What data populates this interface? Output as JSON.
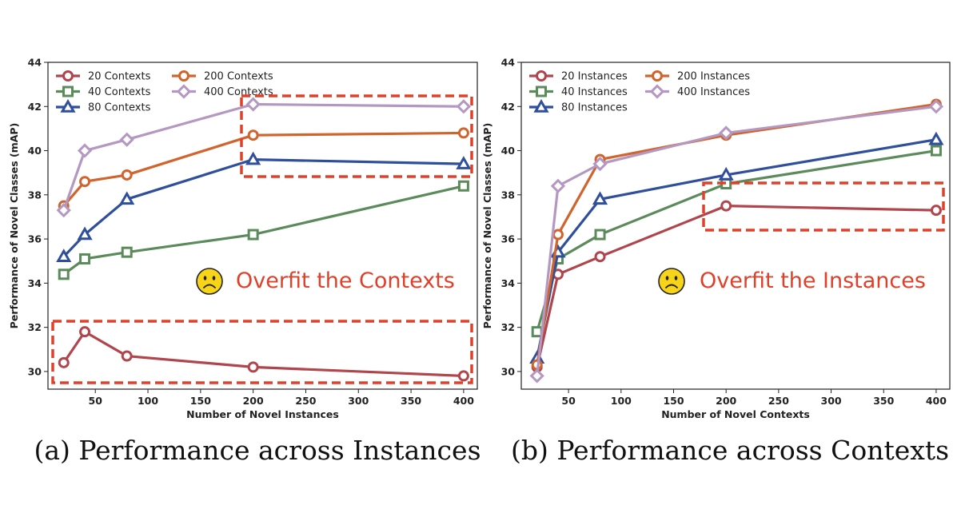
{
  "chart_data": [
    {
      "type": "line",
      "caption": "(a) Performance across Instances",
      "xlabel": "Number of Novel Instances",
      "ylabel": "Performance of Novel Classes (mAP)",
      "xlim": [
        5,
        413
      ],
      "ylim": [
        29.2,
        44
      ],
      "xticks": [
        50,
        100,
        150,
        200,
        250,
        300,
        350,
        400
      ],
      "yticks": [
        30,
        32,
        34,
        36,
        38,
        40,
        42,
        44
      ],
      "x": [
        20,
        40,
        80,
        200,
        400
      ],
      "series": [
        {
          "name": "20 Contexts",
          "color": "#b0454c",
          "marker": "circle",
          "values": [
            30.4,
            31.8,
            30.7,
            30.2,
            29.8
          ]
        },
        {
          "name": "40 Contexts",
          "color": "#5b8a5b",
          "marker": "square",
          "values": [
            34.4,
            35.1,
            35.4,
            36.2,
            38.4
          ]
        },
        {
          "name": "80 Contexts",
          "color": "#2f4f9c",
          "marker": "triangle",
          "values": [
            35.2,
            36.2,
            37.8,
            39.6,
            39.4
          ]
        },
        {
          "name": "200 Contexts",
          "color": "#d0642c",
          "marker": "circle",
          "values": [
            37.5,
            38.6,
            38.9,
            40.7,
            40.8
          ]
        },
        {
          "name": "400 Contexts",
          "color": "#b498c2",
          "marker": "diamond",
          "values": [
            37.3,
            40.0,
            40.5,
            42.1,
            42.0
          ]
        }
      ],
      "legend_position": "top-left",
      "annotation": {
        "emoji": "🙁",
        "text": "Overfit the Contexts",
        "color": "#e0402a"
      }
    },
    {
      "type": "line",
      "caption": "(b) Performance across Contexts",
      "xlabel": "Number of Novel Contexts",
      "ylabel": "Performance of Novel Classes (mAP)",
      "xlim": [
        5,
        413
      ],
      "ylim": [
        29.2,
        44
      ],
      "xticks": [
        50,
        100,
        150,
        200,
        250,
        300,
        350,
        400
      ],
      "yticks": [
        30,
        32,
        34,
        36,
        38,
        40,
        42,
        44
      ],
      "x": [
        20,
        40,
        80,
        200,
        400
      ],
      "series": [
        {
          "name": "20 Instances",
          "color": "#b0454c",
          "marker": "circle",
          "values": [
            30.2,
            34.4,
            35.2,
            37.5,
            37.3
          ]
        },
        {
          "name": "40 Instances",
          "color": "#5b8a5b",
          "marker": "square",
          "values": [
            31.8,
            35.1,
            36.2,
            38.5,
            40.0
          ]
        },
        {
          "name": "80 Instances",
          "color": "#2f4f9c",
          "marker": "triangle",
          "values": [
            30.6,
            35.4,
            37.8,
            38.9,
            40.5
          ]
        },
        {
          "name": "200 Instances",
          "color": "#d0642c",
          "marker": "circle",
          "values": [
            30.3,
            36.2,
            39.6,
            40.7,
            42.1
          ]
        },
        {
          "name": "400 Instances",
          "color": "#b498c2",
          "marker": "diamond",
          "values": [
            29.8,
            38.4,
            39.4,
            40.8,
            42.0
          ]
        }
      ],
      "legend_position": "top-left",
      "annotation": {
        "emoji": "🙁",
        "text": "Overfit the Instances",
        "color": "#e0402a"
      }
    }
  ]
}
